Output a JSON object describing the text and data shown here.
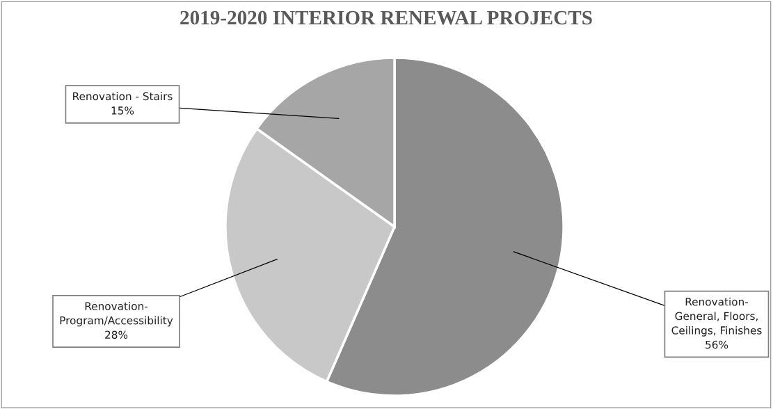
{
  "chart_data": {
    "type": "pie",
    "title": "2019-2020 INTERIOR RENEWAL PROJECTS",
    "categories": [
      "Renovation-\nGeneral, Floors,\nCeilings, Finishes",
      "Renovation-\nProgram/Accessibility",
      "Renovation - Stairs"
    ],
    "values": [
      56,
      28,
      15
    ],
    "colors": [
      "#8c8c8c",
      "#c8c8c8",
      "#a6a6a6"
    ],
    "value_labels": [
      "56%",
      "28%",
      "15%"
    ],
    "legend": false
  }
}
